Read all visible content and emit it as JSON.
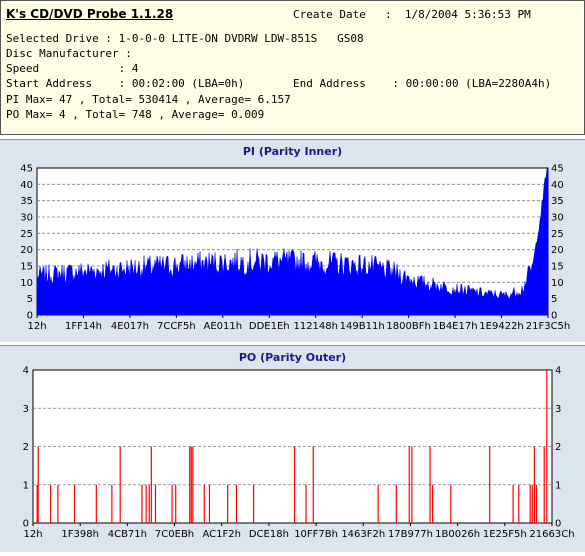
{
  "app": {
    "title": "K's CD/DVD Probe 1.1.28",
    "create_date_label": "Create Date",
    "create_date_value": ":  1/8/2004 5:36:53 PM"
  },
  "info": {
    "selected_drive": "Selected Drive : 1-0-0-0 LITE-ON DVDRW LDW-851S   GS08",
    "disc_manufacturer": "Disc Manufacturer :",
    "speed": "Speed            : 4",
    "start_address": "Start Address    : 00:02:00 (LBA=0h)",
    "end_address": "End Address    : 00:00:00 (LBA=2280A4h)",
    "pi_summary": "PI Max= 47 , Total= 530414 , Average= 6.157",
    "po_summary": "PO Max= 4 , Total= 748 , Average= 0.009"
  },
  "colors": {
    "bar": "#0000ff",
    "po_bar": "#ff0000",
    "panel": "#dce4ee",
    "plot": "#ffffff",
    "title": "#1a1a8c"
  },
  "chart_data": [
    {
      "type": "area",
      "title": "PI (Parity Inner)",
      "ylim": [
        0,
        45
      ],
      "yticks": [
        0,
        5,
        10,
        15,
        20,
        25,
        30,
        35,
        40,
        45
      ],
      "xticklabels": [
        "12h",
        "1FF14h",
        "4E017h",
        "7CCF5h",
        "AE011h",
        "DDE1Eh",
        "112148h",
        "149B11h",
        "1800BFh",
        "1B4E17h",
        "1E9422h",
        "21F3C5h"
      ],
      "grid": true,
      "profile": [
        {
          "x": 0.0,
          "y": 12
        },
        {
          "x": 0.06,
          "y": 13
        },
        {
          "x": 0.15,
          "y": 14
        },
        {
          "x": 0.25,
          "y": 15
        },
        {
          "x": 0.35,
          "y": 16
        },
        {
          "x": 0.45,
          "y": 16.5
        },
        {
          "x": 0.55,
          "y": 16
        },
        {
          "x": 0.65,
          "y": 15
        },
        {
          "x": 0.7,
          "y": 13
        },
        {
          "x": 0.75,
          "y": 10
        },
        {
          "x": 0.82,
          "y": 8
        },
        {
          "x": 0.88,
          "y": 6.5
        },
        {
          "x": 0.92,
          "y": 6
        },
        {
          "x": 0.95,
          "y": 8
        },
        {
          "x": 0.97,
          "y": 15
        },
        {
          "x": 0.985,
          "y": 30
        },
        {
          "x": 1.0,
          "y": 47
        }
      ]
    },
    {
      "type": "bar",
      "title": "PO (Parity Outer)",
      "ylim": [
        0,
        4
      ],
      "yticks": [
        0,
        1,
        2,
        3,
        4
      ],
      "xticklabels": [
        "12h",
        "1F398h",
        "4CB71h",
        "7C0EBh",
        "AC1F2h",
        "DCE18h",
        "10FF7Bh",
        "1463F2h",
        "17B977h",
        "1B0026h",
        "1E25F5h",
        "21663Ch"
      ],
      "grid": true,
      "points": [
        {
          "x": 0.008,
          "y": 1
        },
        {
          "x": 0.01,
          "y": 2
        },
        {
          "x": 0.034,
          "y": 1
        },
        {
          "x": 0.048,
          "y": 1
        },
        {
          "x": 0.08,
          "y": 1
        },
        {
          "x": 0.122,
          "y": 1
        },
        {
          "x": 0.152,
          "y": 1
        },
        {
          "x": 0.168,
          "y": 2
        },
        {
          "x": 0.21,
          "y": 1
        },
        {
          "x": 0.218,
          "y": 1
        },
        {
          "x": 0.224,
          "y": 1
        },
        {
          "x": 0.228,
          "y": 2
        },
        {
          "x": 0.236,
          "y": 1
        },
        {
          "x": 0.268,
          "y": 1
        },
        {
          "x": 0.275,
          "y": 1
        },
        {
          "x": 0.302,
          "y": 2
        },
        {
          "x": 0.305,
          "y": 2
        },
        {
          "x": 0.308,
          "y": 2
        },
        {
          "x": 0.33,
          "y": 1
        },
        {
          "x": 0.34,
          "y": 1
        },
        {
          "x": 0.375,
          "y": 1
        },
        {
          "x": 0.392,
          "y": 1
        },
        {
          "x": 0.425,
          "y": 1
        },
        {
          "x": 0.504,
          "y": 2
        },
        {
          "x": 0.526,
          "y": 1
        },
        {
          "x": 0.54,
          "y": 2
        },
        {
          "x": 0.665,
          "y": 1
        },
        {
          "x": 0.7,
          "y": 1
        },
        {
          "x": 0.725,
          "y": 2
        },
        {
          "x": 0.73,
          "y": 2
        },
        {
          "x": 0.765,
          "y": 2
        },
        {
          "x": 0.77,
          "y": 1
        },
        {
          "x": 0.805,
          "y": 1
        },
        {
          "x": 0.88,
          "y": 2
        },
        {
          "x": 0.925,
          "y": 1
        },
        {
          "x": 0.936,
          "y": 1
        },
        {
          "x": 0.958,
          "y": 1
        },
        {
          "x": 0.962,
          "y": 1
        },
        {
          "x": 0.966,
          "y": 2
        },
        {
          "x": 0.97,
          "y": 1
        },
        {
          "x": 0.985,
          "y": 2
        },
        {
          "x": 0.99,
          "y": 4
        }
      ]
    }
  ]
}
